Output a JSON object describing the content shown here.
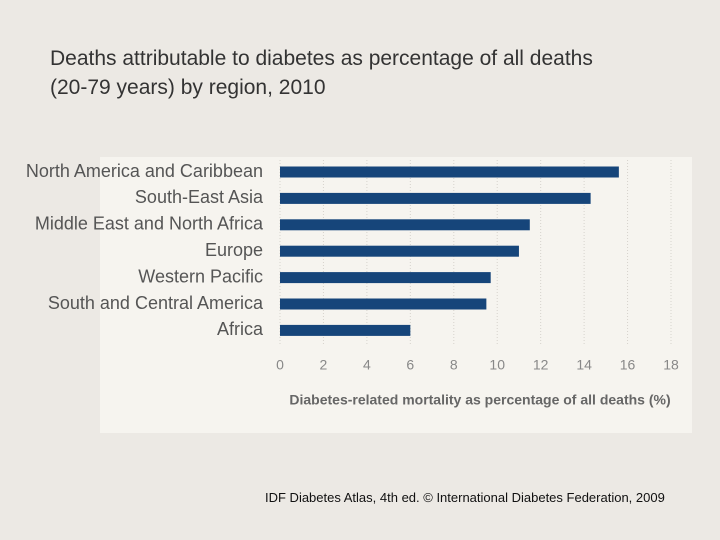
{
  "chart_data": {
    "type": "hbar",
    "title": "Deaths attributable to diabetes as percentage of all deaths (20-79 years) by region, 2010",
    "categories": [
      "North America and Caribbean",
      "South-East Asia",
      "Middle East and North Africa",
      "Europe",
      "Western Pacific",
      "South and Central America",
      "Africa"
    ],
    "values": [
      15.6,
      14.3,
      11.5,
      11.0,
      9.7,
      9.5,
      6.0
    ],
    "color": "#16457a",
    "xlim": [
      0,
      18
    ],
    "xticks": [
      0,
      2,
      4,
      6,
      8,
      10,
      12,
      14,
      16,
      18
    ],
    "grid": true,
    "x_label": "Diabetes-related mortality as percentage of all deaths (%)",
    "source": "IDF Diabetes Atlas, 4th ed. © International Diabetes Federation, 2009"
  }
}
